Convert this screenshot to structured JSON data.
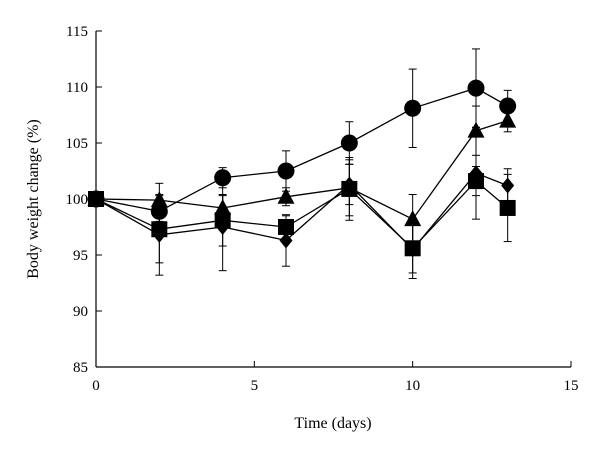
{
  "chart_data": {
    "type": "line",
    "title": "",
    "xlabel": "Time (days)",
    "ylabel": "Body weight change (%)",
    "xlim": [
      0,
      15
    ],
    "ylim": [
      85,
      115
    ],
    "xticks": [
      0,
      5,
      10,
      15
    ],
    "yticks": [
      85,
      90,
      95,
      100,
      105,
      110,
      115
    ],
    "xtick_labels": [
      "0",
      "5",
      "10",
      "15"
    ],
    "ytick_labels": [
      "85",
      "90",
      "95",
      "100",
      "105",
      "110",
      "115"
    ],
    "grid": false,
    "legend": false,
    "line_color": "#000000",
    "series": [
      {
        "marker": "circle",
        "x": [
          0,
          2,
          4,
          6,
          8,
          10,
          12,
          13
        ],
        "y": [
          100,
          98.9,
          101.9,
          102.5,
          105.0,
          108.1,
          109.9,
          108.3
        ],
        "err": [
          0,
          0.9,
          0.9,
          1.8,
          1.9,
          3.5,
          3.5,
          1.4
        ]
      },
      {
        "marker": "triangle",
        "x": [
          0,
          2,
          4,
          6,
          8,
          10,
          12,
          13
        ],
        "y": [
          100,
          99.9,
          99.2,
          100.2,
          101.0,
          98.2,
          106.1,
          107.0
        ],
        "err": [
          0,
          1.5,
          1.1,
          0.8,
          2.5,
          2.2,
          2.2,
          1.0
        ]
      },
      {
        "marker": "square",
        "x": [
          0,
          2,
          4,
          6,
          8,
          10,
          12,
          13
        ],
        "y": [
          100,
          97.3,
          98.1,
          97.5,
          100.9,
          95.6,
          101.6,
          99.2
        ],
        "err": [
          0,
          3.0,
          2.3,
          1.0,
          2.8,
          2.2,
          1.3,
          3.0
        ]
      },
      {
        "marker": "diamond",
        "x": [
          0,
          2,
          4,
          6,
          8,
          10,
          12,
          13
        ],
        "y": [
          100,
          96.8,
          97.5,
          96.3,
          101.3,
          95.5,
          102.3,
          101.2
        ],
        "err": [
          0,
          3.6,
          3.9,
          2.3,
          1.8,
          2.6,
          4.1,
          1.5
        ]
      }
    ]
  }
}
